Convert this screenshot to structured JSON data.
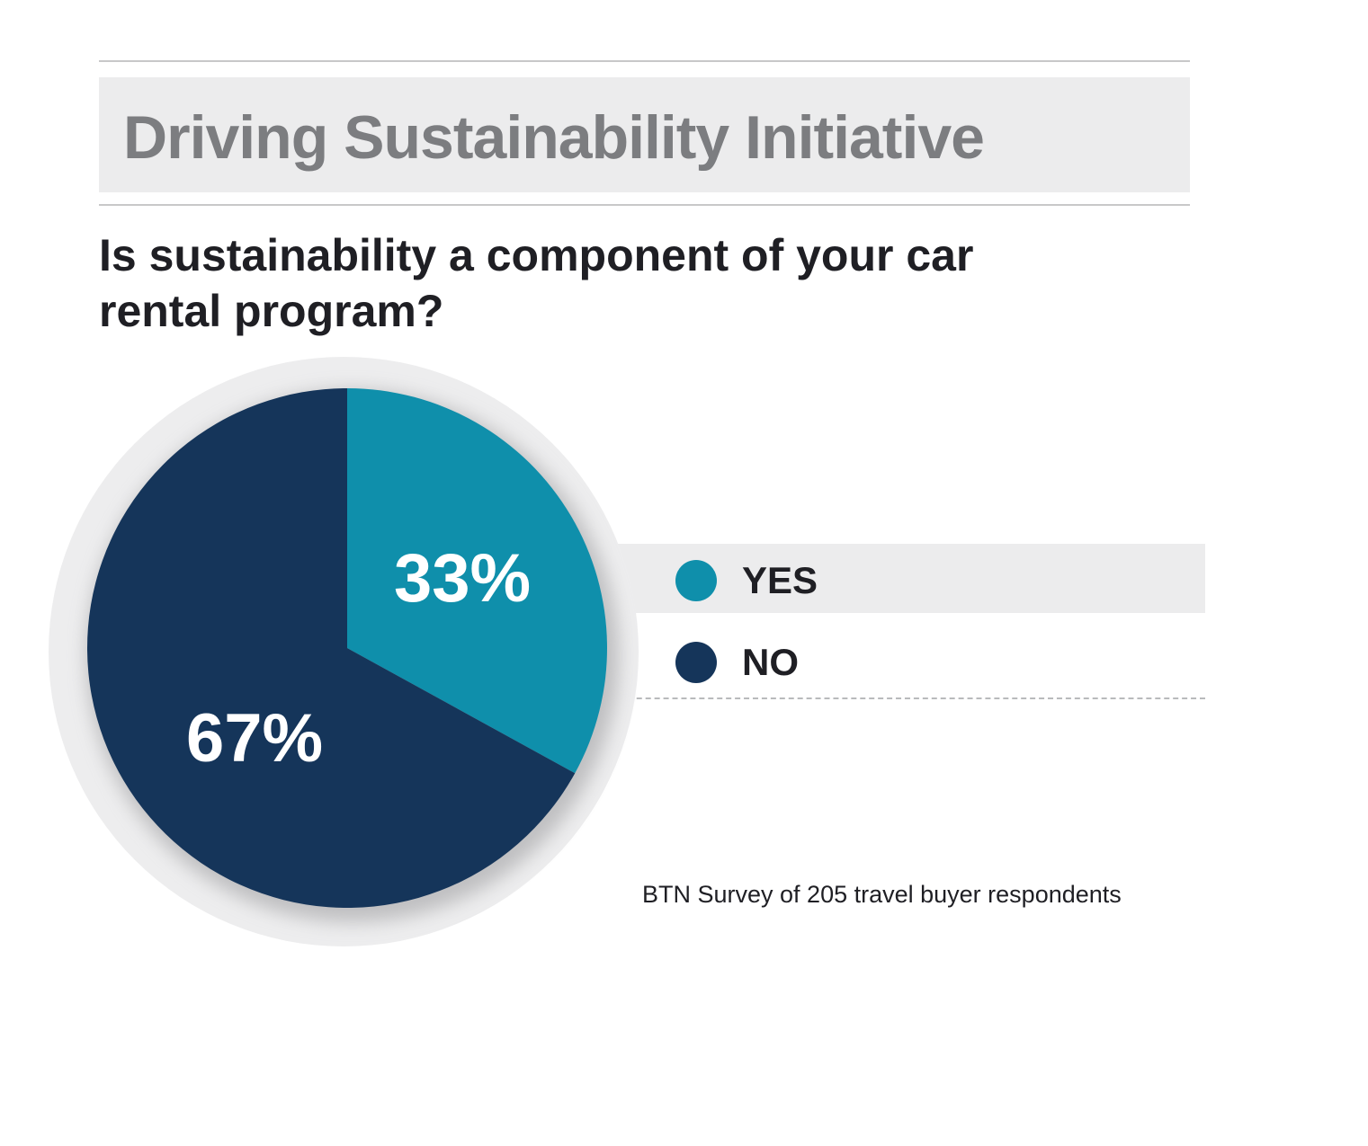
{
  "title": "Driving Sustainability Initiative",
  "question": "Is sustainability a component of your car rental program?",
  "source": "BTN Survey of 205 travel buyer respondents",
  "chart_data": {
    "type": "pie",
    "title": "Is sustainability a component of your car rental program?",
    "legend_position": "right",
    "slices": [
      {
        "label": "YES",
        "value": 33,
        "value_label": "33%",
        "color": "#0f8fab"
      },
      {
        "label": "NO",
        "value": 67,
        "value_label": "67%",
        "color": "#15355a"
      }
    ]
  }
}
